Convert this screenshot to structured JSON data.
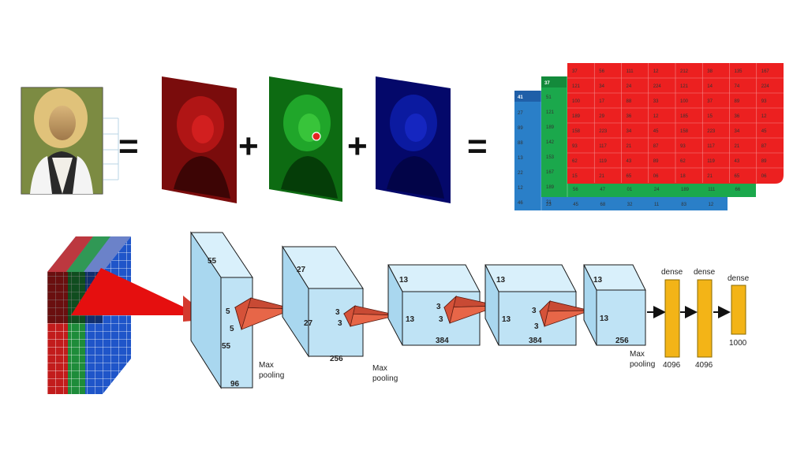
{
  "operators": {
    "equals": "=",
    "plus": "+"
  },
  "matrices": {
    "red_rows": [
      [
        "37",
        "56",
        "111",
        "12",
        "212",
        "38",
        "135",
        "167"
      ],
      [
        "121",
        "34",
        "24",
        "224",
        "121",
        "14",
        "74",
        "224"
      ],
      [
        "100",
        "17",
        "88",
        "33",
        "100",
        "37",
        "89",
        "93"
      ],
      [
        "189",
        "29",
        "36",
        "12",
        "185",
        "15",
        "36",
        "12"
      ],
      [
        "158",
        "223",
        "34",
        "45",
        "158",
        "223",
        "34",
        "45"
      ],
      [
        "93",
        "117",
        "21",
        "87",
        "93",
        "117",
        "21",
        "87"
      ],
      [
        "62",
        "119",
        "43",
        "89",
        "62",
        "119",
        "43",
        "89"
      ],
      [
        "15",
        "21",
        "65",
        "06",
        "18",
        "21",
        "65",
        "06"
      ]
    ],
    "green_header": "37",
    "green_col": [
      "51",
      "121",
      "189",
      "142",
      "153",
      "167",
      "189",
      "21"
    ],
    "green_bottom": [
      "56",
      "47",
      "01",
      "24",
      "189",
      "111",
      "66"
    ],
    "blue_header": "41",
    "blue_col": [
      "27",
      "89",
      "88",
      "13",
      "22",
      "12",
      "46"
    ],
    "blue_bottom": [
      "23",
      "45",
      "68",
      "32",
      "11",
      "83",
      "12"
    ]
  },
  "network": {
    "input_label": "",
    "conv1": {
      "height": "55",
      "width_label": "55",
      "depth": "96",
      "kernel_h": "5",
      "kernel_w": "5"
    },
    "conv2": {
      "height": "27",
      "width_label": "27",
      "depth": "256",
      "kernel_h": "3",
      "kernel_w": "3"
    },
    "conv3": {
      "height": "13",
      "width_label": "13",
      "depth": "384",
      "kernel_h": "3",
      "kernel_w": "3"
    },
    "conv4": {
      "height": "13",
      "width_label": "13",
      "depth": "384",
      "kernel_h": "3",
      "kernel_w": "3"
    },
    "conv5": {
      "height": "13",
      "width_label": "13",
      "depth": "256"
    },
    "pool_label_line1": "Max",
    "pool_label_line2": "pooling",
    "dense1": {
      "label": "dense",
      "size": "4096"
    },
    "dense2": {
      "label": "dense",
      "size": "4096"
    },
    "dense3": {
      "label": "dense",
      "size": "1000"
    }
  },
  "colors": {
    "box_fill": "#bfe3f5",
    "box_stroke": "#1a1a1a",
    "kernel": "#e0553a",
    "dense": "#f3b417",
    "red": "#e52421",
    "green": "#1aa64a",
    "blue": "#1f6fc2"
  }
}
